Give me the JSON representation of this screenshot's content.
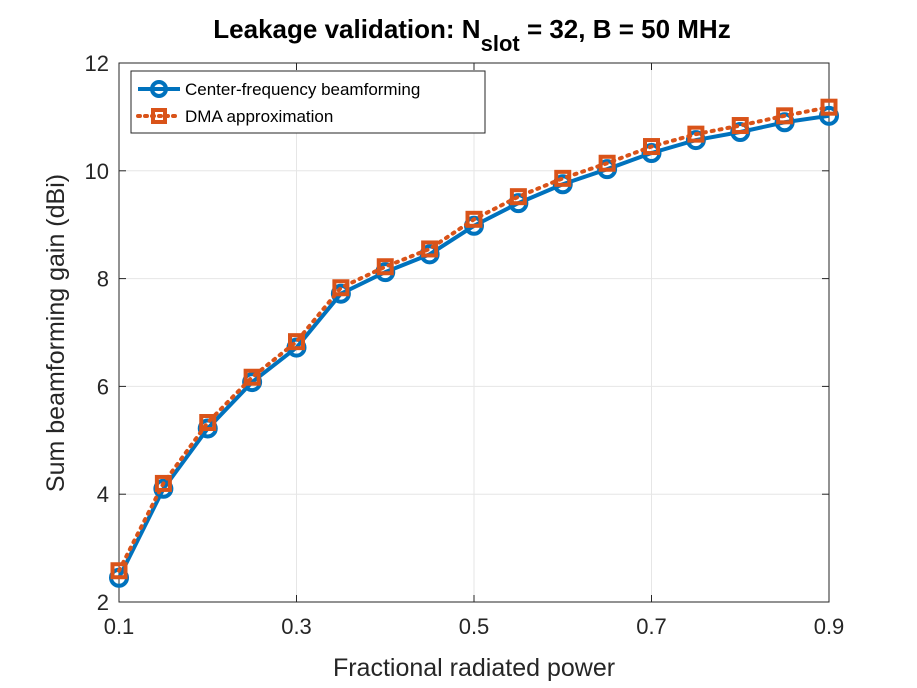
{
  "chart_data": {
    "type": "line",
    "title": {
      "prefix": "Leakage validation: N",
      "subscript": "slot",
      "suffix": " = 32, B = 50 MHz"
    },
    "xlabel": "Fractional radiated power",
    "ylabel": "Sum beamforming gain (dBi)",
    "xlim": [
      0.1,
      0.9
    ],
    "ylim": [
      2,
      12
    ],
    "xticks": [
      0.1,
      0.3,
      0.5,
      0.7,
      0.9
    ],
    "xtick_labels": [
      "0.1",
      "0.3",
      "0.5",
      "0.7",
      "0.9"
    ],
    "yticks": [
      2,
      4,
      6,
      8,
      10,
      12
    ],
    "ytick_labels": [
      "2",
      "4",
      "6",
      "8",
      "10",
      "12"
    ],
    "grid": true,
    "legend_position": "top-left",
    "x": [
      0.1,
      0.15,
      0.2,
      0.25,
      0.3,
      0.35,
      0.4,
      0.45,
      0.5,
      0.55,
      0.6,
      0.65,
      0.7,
      0.75,
      0.8,
      0.85,
      0.9
    ],
    "series": [
      {
        "name": "Center-frequency beamforming",
        "color": "#0072BD",
        "line_style": "solid",
        "marker": "circle",
        "values": [
          2.45,
          4.1,
          5.22,
          6.08,
          6.72,
          7.72,
          8.12,
          8.45,
          8.98,
          9.4,
          9.75,
          10.03,
          10.33,
          10.57,
          10.72,
          10.9,
          11.02
        ]
      },
      {
        "name": "DMA approximation",
        "color": "#D95319",
        "line_style": "dotted",
        "marker": "square",
        "values": [
          2.58,
          4.2,
          5.33,
          6.17,
          6.83,
          7.83,
          8.22,
          8.55,
          9.1,
          9.52,
          9.86,
          10.14,
          10.45,
          10.68,
          10.84,
          11.02,
          11.18
        ]
      }
    ]
  }
}
